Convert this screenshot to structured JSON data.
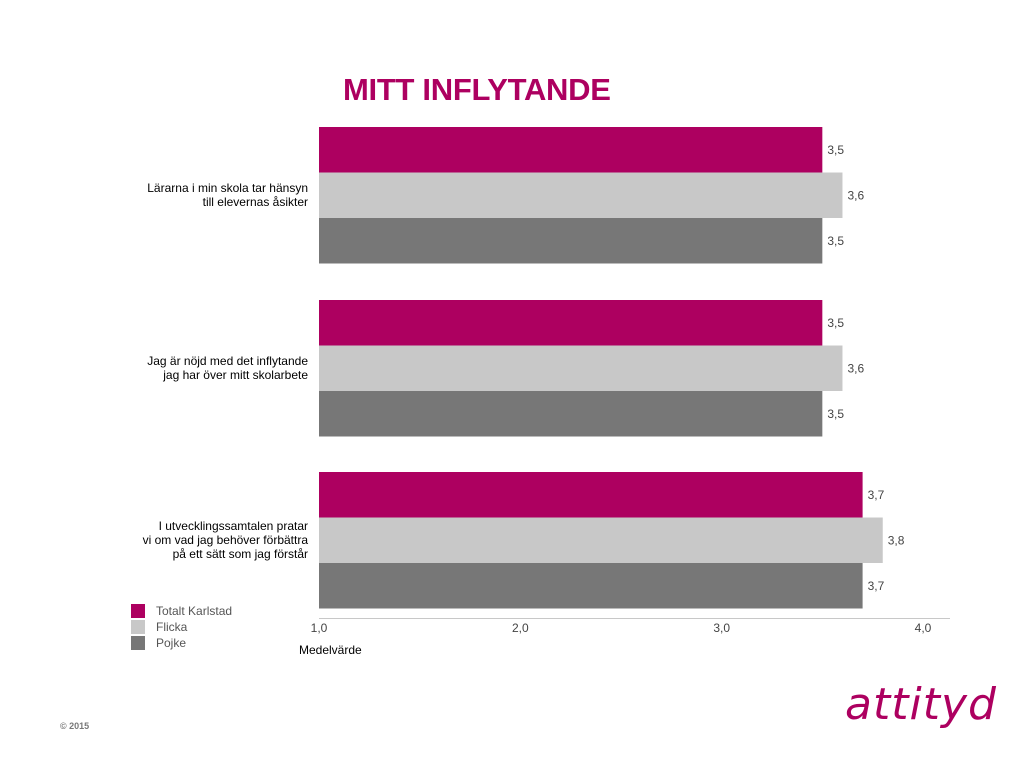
{
  "colors": {
    "accent": "#ad0060",
    "flicka": "#c8c8c8",
    "pojke": "#777777"
  },
  "footer": {
    "copyright": "© 2015",
    "logo_text": "attityd"
  },
  "chart_data": {
    "type": "bar",
    "orientation": "horizontal",
    "title": "MITT INFLYTANDE",
    "xlabel": "Medelvärde",
    "xlim": [
      1,
      4
    ],
    "xticks": [
      "1,0",
      "2,0",
      "3,0",
      "4,0"
    ],
    "grid": false,
    "legend_position": "bottom-left",
    "categories": [
      [
        "Lärarna i min skola tar hänsyn",
        "till elevernas åsikter"
      ],
      [
        "Jag är nöjd med det inflytande",
        "jag har över mitt skolarbete"
      ],
      [
        "I utvecklingssamtalen pratar",
        "vi om vad jag behöver förbättra",
        "på ett sätt som jag förstår"
      ]
    ],
    "series": [
      {
        "name": "Totalt Karlstad",
        "color": "#ad0060",
        "values": [
          3.5,
          3.5,
          3.7
        ],
        "labels": [
          "3,5",
          "3,5",
          "3,7"
        ]
      },
      {
        "name": "Flicka",
        "color": "#c8c8c8",
        "values": [
          3.6,
          3.6,
          3.8
        ],
        "labels": [
          "3,6",
          "3,6",
          "3,8"
        ]
      },
      {
        "name": "Pojke",
        "color": "#777777",
        "values": [
          3.5,
          3.5,
          3.7
        ],
        "labels": [
          "3,5",
          "3,5",
          "3,7"
        ]
      }
    ]
  }
}
